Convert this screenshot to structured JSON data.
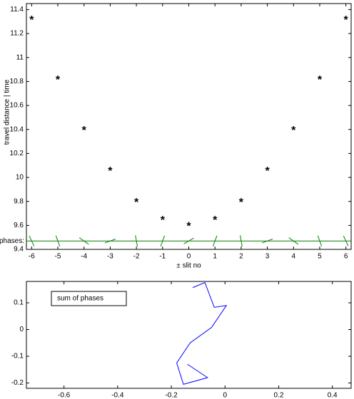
{
  "chart_data": [
    {
      "type": "scatter",
      "xlabel": "± slit no",
      "ylabel": "travel distance | time",
      "x": [
        -6,
        -5,
        -4,
        -3,
        -2,
        -1,
        0,
        1,
        2,
        3,
        4,
        5,
        6
      ],
      "series": [
        {
          "name": "travel distance",
          "color": "#0000ff",
          "values": [
            11.32,
            10.82,
            10.4,
            10.06,
            9.8,
            9.65,
            9.6,
            9.65,
            9.8,
            10.06,
            10.4,
            10.82,
            11.32
          ]
        }
      ],
      "phase_label": "phases:",
      "phase_level": 9.47,
      "phase_color": "#008000",
      "phase_angles": [
        -65,
        -70,
        -35,
        20,
        -80,
        70,
        30,
        70,
        -80,
        20,
        -35,
        -70,
        -65
      ],
      "xlim": [
        -6.2,
        6.2
      ],
      "ylim": [
        9.4,
        11.45
      ],
      "xticks": [
        -6,
        -5,
        -4,
        -3,
        -2,
        -1,
        0,
        1,
        2,
        3,
        4,
        5,
        6
      ],
      "yticks": [
        9.4,
        9.6,
        9.8,
        10,
        10.2,
        10.4,
        10.6,
        10.8,
        11,
        11.2,
        11.4
      ]
    },
    {
      "type": "line",
      "series": [
        {
          "name": "sum of phases",
          "color": "#0000ff",
          "x": [
            -0.12,
            -0.075,
            -0.04,
            0.005,
            -0.05,
            -0.13,
            -0.18,
            -0.155,
            -0.065,
            -0.14
          ],
          "values": [
            0.157,
            0.176,
            0.083,
            0.09,
            0.008,
            -0.05,
            -0.125,
            -0.205,
            -0.18,
            -0.13
          ]
        }
      ],
      "xlim": [
        -0.74,
        0.47
      ],
      "ylim": [
        -0.22,
        0.18
      ],
      "xticks": [
        -0.6,
        -0.4,
        -0.2,
        0,
        0.2,
        0.4
      ],
      "yticks": [
        -0.2,
        -0.1,
        0,
        0.1
      ]
    }
  ]
}
